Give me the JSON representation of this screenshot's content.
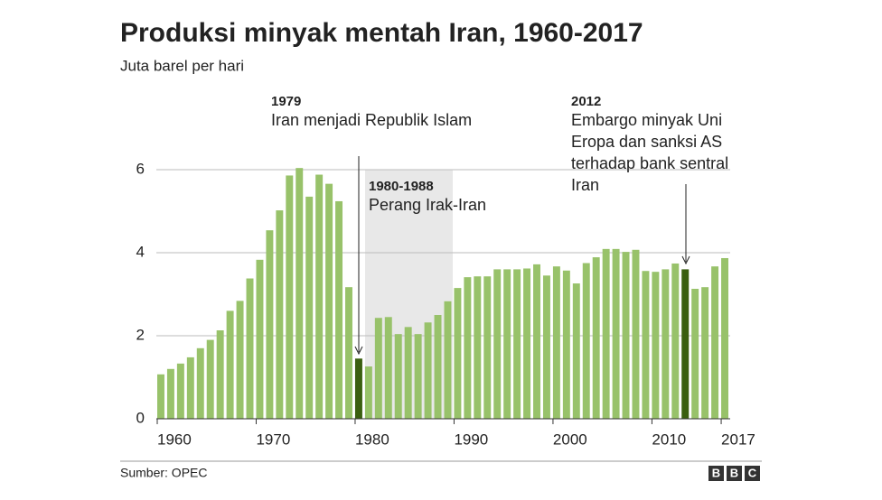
{
  "chart_data": {
    "type": "bar",
    "title": "Produksi minyak mentah Iran, 1960-2017",
    "subtitle": "Juta barel per hari",
    "x": [
      1960,
      1961,
      1962,
      1963,
      1964,
      1965,
      1966,
      1967,
      1968,
      1969,
      1970,
      1971,
      1972,
      1973,
      1974,
      1975,
      1976,
      1977,
      1978,
      1979,
      1980,
      1981,
      1982,
      1983,
      1984,
      1985,
      1986,
      1987,
      1988,
      1989,
      1990,
      1991,
      1992,
      1993,
      1994,
      1995,
      1996,
      1997,
      1998,
      1999,
      2000,
      2001,
      2002,
      2003,
      2004,
      2005,
      2006,
      2007,
      2008,
      2009,
      2010,
      2011,
      2012,
      2013,
      2014,
      2015,
      2016,
      2017
    ],
    "values": [
      1.07,
      1.2,
      1.33,
      1.48,
      1.7,
      1.9,
      2.13,
      2.6,
      2.84,
      3.38,
      3.83,
      4.54,
      5.02,
      5.86,
      6.04,
      5.35,
      5.88,
      5.66,
      5.24,
      3.17,
      1.45,
      1.26,
      2.43,
      2.45,
      2.04,
      2.21,
      2.04,
      2.32,
      2.5,
      2.83,
      3.15,
      3.41,
      3.43,
      3.43,
      3.6,
      3.6,
      3.6,
      3.62,
      3.72,
      3.45,
      3.67,
      3.57,
      3.26,
      3.75,
      3.89,
      4.09,
      4.09,
      4.02,
      4.07,
      3.56,
      3.54,
      3.6,
      3.74,
      3.6,
      3.13,
      3.17,
      3.67,
      3.87
    ],
    "color": "#98c26a",
    "colors": [
      "#98c26a",
      "#98c26a",
      "#98c26a",
      "#98c26a",
      "#98c26a",
      "#98c26a",
      "#98c26a",
      "#98c26a",
      "#98c26a",
      "#98c26a",
      "#98c26a",
      "#98c26a",
      "#98c26a",
      "#98c26a",
      "#98c26a",
      "#98c26a",
      "#98c26a",
      "#98c26a",
      "#98c26a",
      "#98c26a",
      "#3a5f0f",
      "#98c26a",
      "#98c26a",
      "#98c26a",
      "#98c26a",
      "#98c26a",
      "#98c26a",
      "#98c26a",
      "#98c26a",
      "#98c26a",
      "#98c26a",
      "#98c26a",
      "#98c26a",
      "#98c26a",
      "#98c26a",
      "#98c26a",
      "#98c26a",
      "#98c26a",
      "#98c26a",
      "#98c26a",
      "#98c26a",
      "#98c26a",
      "#98c26a",
      "#98c26a",
      "#98c26a",
      "#98c26a",
      "#98c26a",
      "#98c26a",
      "#98c26a",
      "#98c26a",
      "#98c26a",
      "#98c26a",
      "#98c26a",
      "#3a5f0f",
      "#98c26a",
      "#98c26a",
      "#98c26a",
      "#98c26a"
    ],
    "xlim": [
      1960,
      2018
    ],
    "xticks": [
      1960,
      1970,
      1980,
      1990,
      2000,
      2010,
      2017
    ],
    "ylim": [
      0,
      6
    ],
    "yticks": [
      0,
      2,
      4,
      6
    ],
    "grid": true,
    "annotations": [
      {
        "label": "1979",
        "text": [
          "Iran menjadi Republik Islam"
        ]
      },
      {
        "label": "1980-1988",
        "text": [
          "Perang Irak-Iran"
        ]
      },
      {
        "label": "2012",
        "text": [
          "Embargo minyak Uni",
          "Eropa dan sanksi AS",
          "terhadap bank sentral",
          "Iran"
        ]
      }
    ],
    "source": "Sumber: OPEC"
  }
}
